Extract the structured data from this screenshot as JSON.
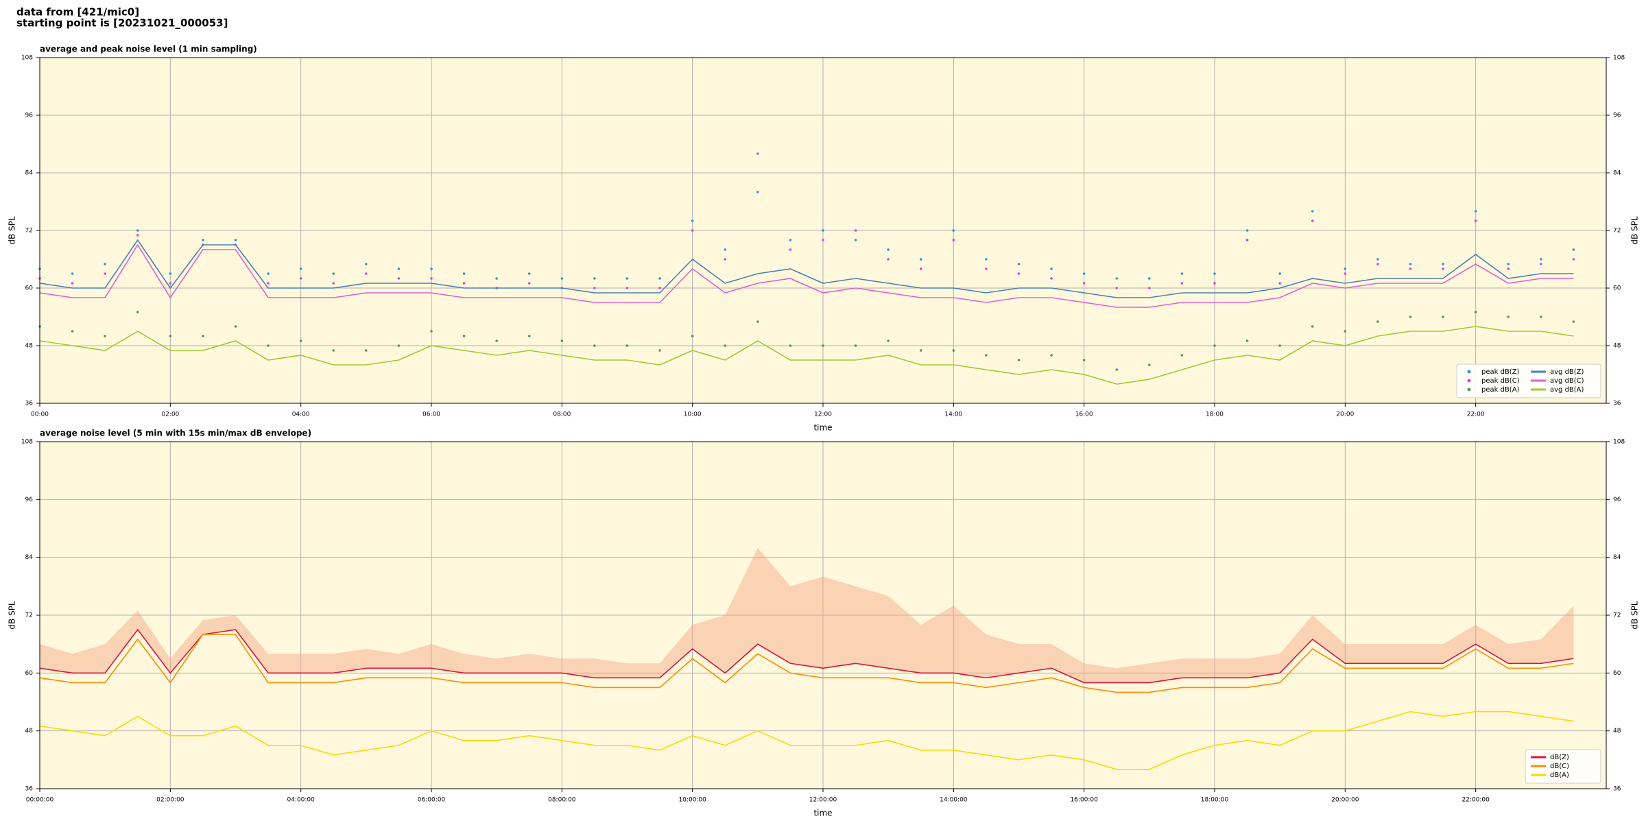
{
  "header": {
    "line1": "data from [421/mic0]",
    "line2": "starting point is [20231021_000053]"
  },
  "chart_data": [
    {
      "type": "line",
      "title": "average and peak noise level (1 min sampling)",
      "xlabel": "time",
      "ylabel": "dB SPL",
      "x": [
        0,
        0.5,
        1,
        1.5,
        2,
        2.5,
        3,
        3.5,
        4,
        4.5,
        5,
        5.5,
        6,
        6.5,
        7,
        7.5,
        8,
        8.5,
        9,
        9.5,
        10,
        10.5,
        11,
        11.5,
        12,
        12.5,
        13,
        13.5,
        14,
        14.5,
        15,
        15.5,
        16,
        16.5,
        17,
        17.5,
        18,
        18.5,
        19,
        19.5,
        20,
        20.5,
        21,
        21.5,
        22,
        22.5,
        23,
        23.5
      ],
      "xlim": [
        0,
        24
      ],
      "xticks": [
        {
          "value": 0,
          "label": "00:00"
        },
        {
          "value": 2,
          "label": "02:00"
        },
        {
          "value": 4,
          "label": "04:00"
        },
        {
          "value": 6,
          "label": "06:00"
        },
        {
          "value": 8,
          "label": "08:00"
        },
        {
          "value": 10,
          "label": "10:00"
        },
        {
          "value": 12,
          "label": "12:00"
        },
        {
          "value": 14,
          "label": "14:00"
        },
        {
          "value": 16,
          "label": "16:00"
        },
        {
          "value": 18,
          "label": "18:00"
        },
        {
          "value": 20,
          "label": "20:00"
        },
        {
          "value": 22,
          "label": "22:00"
        }
      ],
      "ylim": [
        36,
        108
      ],
      "yticks": [
        36,
        48,
        60,
        72,
        84,
        96,
        108
      ],
      "grid": true,
      "legend": "lower right",
      "legend_columns": 2,
      "series": [
        {
          "name": "peak dB(Z)",
          "style": "scatter",
          "color": "#1f9fd6",
          "values": [
            64,
            63,
            65,
            72,
            63,
            70,
            70,
            63,
            64,
            63,
            65,
            64,
            64,
            63,
            62,
            63,
            62,
            62,
            62,
            62,
            74,
            68,
            80,
            70,
            72,
            70,
            68,
            66,
            72,
            66,
            65,
            64,
            63,
            62,
            62,
            63,
            63,
            72,
            63,
            76,
            64,
            66,
            65,
            65,
            76,
            65,
            66,
            68
          ]
        },
        {
          "name": "peak dB(C)",
          "style": "scatter",
          "color": "#e040e0",
          "values": [
            62,
            61,
            63,
            71,
            61,
            69,
            69,
            61,
            62,
            61,
            63,
            62,
            62,
            61,
            60,
            61,
            60,
            60,
            60,
            60,
            72,
            66,
            88,
            68,
            70,
            72,
            66,
            64,
            70,
            64,
            63,
            62,
            61,
            60,
            60,
            61,
            61,
            70,
            61,
            74,
            63,
            65,
            64,
            64,
            74,
            64,
            65,
            66
          ]
        },
        {
          "name": "peak dB(A)",
          "style": "scatter",
          "color": "#4f9a5a",
          "values": [
            52,
            51,
            50,
            55,
            50,
            50,
            52,
            48,
            49,
            47,
            47,
            48,
            51,
            50,
            49,
            50,
            49,
            48,
            48,
            47,
            50,
            48,
            53,
            48,
            48,
            48,
            49,
            47,
            47,
            46,
            45,
            46,
            45,
            43,
            44,
            46,
            48,
            49,
            48,
            52,
            51,
            53,
            54,
            54,
            55,
            54,
            54,
            53
          ]
        },
        {
          "name": "avg dB(Z)",
          "style": "line",
          "color": "#4682b4",
          "values": [
            61,
            60,
            60,
            70,
            60,
            69,
            69,
            60,
            60,
            60,
            61,
            61,
            61,
            60,
            60,
            60,
            60,
            59,
            59,
            59,
            66,
            61,
            63,
            64,
            61,
            62,
            61,
            60,
            60,
            59,
            60,
            60,
            59,
            58,
            58,
            59,
            59,
            59,
            60,
            62,
            61,
            62,
            62,
            62,
            67,
            62,
            63,
            63
          ]
        },
        {
          "name": "avg dB(C)",
          "style": "line",
          "color": "#e060d0",
          "values": [
            59,
            58,
            58,
            69,
            58,
            68,
            68,
            58,
            58,
            58,
            59,
            59,
            59,
            58,
            58,
            58,
            58,
            57,
            57,
            57,
            64,
            59,
            61,
            62,
            59,
            60,
            59,
            58,
            58,
            57,
            58,
            58,
            57,
            56,
            56,
            57,
            57,
            57,
            58,
            61,
            60,
            61,
            61,
            61,
            65,
            61,
            62,
            62
          ]
        },
        {
          "name": "avg dB(A)",
          "style": "line",
          "color": "#9acd32",
          "values": [
            49,
            48,
            47,
            51,
            47,
            47,
            49,
            45,
            46,
            44,
            44,
            45,
            48,
            47,
            46,
            47,
            46,
            45,
            45,
            44,
            47,
            45,
            49,
            45,
            45,
            45,
            46,
            44,
            44,
            43,
            42,
            43,
            42,
            40,
            41,
            43,
            45,
            46,
            45,
            49,
            48,
            50,
            51,
            51,
            52,
            51,
            51,
            50
          ]
        }
      ]
    },
    {
      "type": "line",
      "title": "average noise level (5 min with 15s min/max dB envelope)",
      "xlabel": "time",
      "ylabel": "dB SPL",
      "x": [
        0,
        0.5,
        1,
        1.5,
        2,
        2.5,
        3,
        3.5,
        4,
        4.5,
        5,
        5.5,
        6,
        6.5,
        7,
        7.5,
        8,
        8.5,
        9,
        9.5,
        10,
        10.5,
        11,
        11.5,
        12,
        12.5,
        13,
        13.5,
        14,
        14.5,
        15,
        15.5,
        16,
        16.5,
        17,
        17.5,
        18,
        18.5,
        19,
        19.5,
        20,
        20.5,
        21,
        21.5,
        22,
        22.5,
        23,
        23.5
      ],
      "xlim": [
        0,
        24
      ],
      "xticks": [
        {
          "value": 0,
          "label": "00:00:00"
        },
        {
          "value": 2,
          "label": "02:00:00"
        },
        {
          "value": 4,
          "label": "04:00:00"
        },
        {
          "value": 6,
          "label": "06:00:00"
        },
        {
          "value": 8,
          "label": "08:00:00"
        },
        {
          "value": 10,
          "label": "10:00:00"
        },
        {
          "value": 12,
          "label": "12:00:00"
        },
        {
          "value": 14,
          "label": "14:00:00"
        },
        {
          "value": 16,
          "label": "16:00:00"
        },
        {
          "value": 18,
          "label": "18:00:00"
        },
        {
          "value": 20,
          "label": "20:00:00"
        },
        {
          "value": 22,
          "label": "22:00:00"
        }
      ],
      "ylim": [
        36,
        108
      ],
      "yticks": [
        36,
        48,
        60,
        72,
        84,
        96,
        108
      ],
      "grid": true,
      "legend": "lower right",
      "legend_columns": 1,
      "envelope_color": "#f4a582",
      "series": [
        {
          "name": "dB(Z)",
          "style": "line",
          "color": "#dc143c",
          "values": [
            61,
            60,
            60,
            69,
            60,
            68,
            69,
            60,
            60,
            60,
            61,
            61,
            61,
            60,
            60,
            60,
            60,
            59,
            59,
            59,
            65,
            60,
            66,
            62,
            61,
            62,
            61,
            60,
            60,
            59,
            60,
            61,
            58,
            58,
            58,
            59,
            59,
            59,
            60,
            67,
            62,
            62,
            62,
            62,
            66,
            62,
            62,
            63
          ],
          "max": [
            66,
            64,
            66,
            73,
            63,
            71,
            72,
            64,
            64,
            64,
            65,
            64,
            66,
            64,
            63,
            64,
            63,
            63,
            62,
            62,
            70,
            72,
            86,
            78,
            80,
            78,
            76,
            70,
            74,
            68,
            66,
            66,
            62,
            61,
            62,
            63,
            63,
            63,
            64,
            72,
            66,
            66,
            66,
            66,
            70,
            66,
            67,
            74
          ]
        },
        {
          "name": "dB(C)",
          "style": "line",
          "color": "#ff8c00",
          "values": [
            59,
            58,
            58,
            67,
            58,
            68,
            68,
            58,
            58,
            58,
            59,
            59,
            59,
            58,
            58,
            58,
            58,
            57,
            57,
            57,
            63,
            58,
            64,
            60,
            59,
            59,
            59,
            58,
            58,
            57,
            58,
            59,
            57,
            56,
            56,
            57,
            57,
            57,
            58,
            65,
            61,
            61,
            61,
            61,
            65,
            61,
            61,
            62
          ]
        },
        {
          "name": "dB(A)",
          "style": "line",
          "color": "#ffd700",
          "values": [
            49,
            48,
            47,
            51,
            47,
            47,
            49,
            45,
            45,
            43,
            44,
            45,
            48,
            46,
            46,
            47,
            46,
            45,
            45,
            44,
            47,
            45,
            48,
            45,
            45,
            45,
            46,
            44,
            44,
            43,
            42,
            43,
            42,
            40,
            40,
            43,
            45,
            46,
            45,
            48,
            48,
            50,
            52,
            51,
            52,
            52,
            51,
            50
          ]
        }
      ]
    }
  ]
}
